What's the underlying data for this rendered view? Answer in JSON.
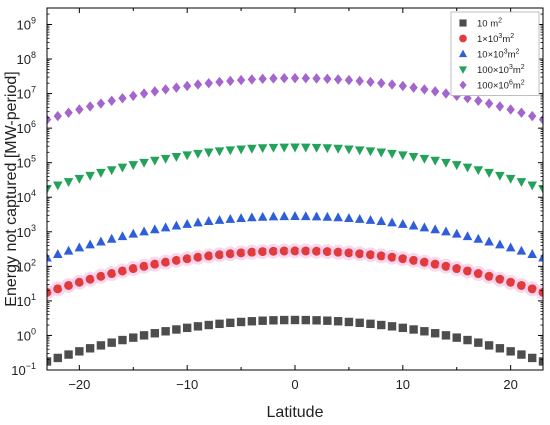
{
  "chart_data": {
    "type": "scatter",
    "xlabel": "Latitude",
    "ylabel": "Energy not captured [MW-period]",
    "xlim": [
      -23,
      23
    ],
    "ylim": [
      0.1,
      3000000000
    ],
    "yscale": "log",
    "x_ticks": [
      -20,
      -10,
      0,
      10,
      20
    ],
    "x_tick_labels": [
      "−20",
      "−10",
      "0",
      "10",
      "20"
    ],
    "y_tick_exponents": [
      -1,
      0,
      1,
      2,
      3,
      4,
      5,
      6,
      7,
      8,
      9
    ],
    "y_tick_base": "10",
    "grid": false,
    "legend_position": "top-right",
    "x": [
      -23,
      -22,
      -21,
      -20,
      -19,
      -18,
      -17,
      -16,
      -15,
      -14,
      -13,
      -12,
      -11,
      -10,
      -9,
      -8,
      -7,
      -6,
      -5,
      -4,
      -3,
      -2,
      -1,
      0,
      1,
      2,
      3,
      4,
      5,
      6,
      7,
      8,
      9,
      10,
      11,
      12,
      13,
      14,
      15,
      16,
      17,
      18,
      19,
      20,
      21,
      22,
      23
    ],
    "series": [
      {
        "name": "10 m²",
        "legend_base": "10 m",
        "legend_sup": "2",
        "marker": "square",
        "color": "#4d4d4d",
        "peak": 2.8
      },
      {
        "name": "1×10³m²",
        "legend_base": "1×10",
        "legend_sup": "3",
        "legend_mid": "m",
        "legend_sup2": "2",
        "marker": "circle",
        "color": "#e03c3c",
        "peak": 280
      },
      {
        "name": "10×10³m²",
        "legend_base": "10×10",
        "legend_sup": "3",
        "legend_mid": "m",
        "legend_sup2": "2",
        "marker": "triangle-up",
        "color": "#2f5fd8",
        "peak": 2800
      },
      {
        "name": "100×10³m²",
        "legend_base": "100×10",
        "legend_sup": "3",
        "legend_mid": "m",
        "legend_sup2": "2",
        "marker": "triangle-down",
        "color": "#23a35a",
        "peak": 280000
      },
      {
        "name": "100×10⁶m²",
        "legend_base": "100×10",
        "legend_sup": "6",
        "legend_mid": "m",
        "legend_sup2": "2",
        "marker": "diamond",
        "color": "#a465cf",
        "peak": 28000000
      }
    ],
    "curve_shape": "value = peak * exp(-a * x^2), falling about 1.2 decades from the peak at x = 0 to the edges at x = ±23"
  }
}
